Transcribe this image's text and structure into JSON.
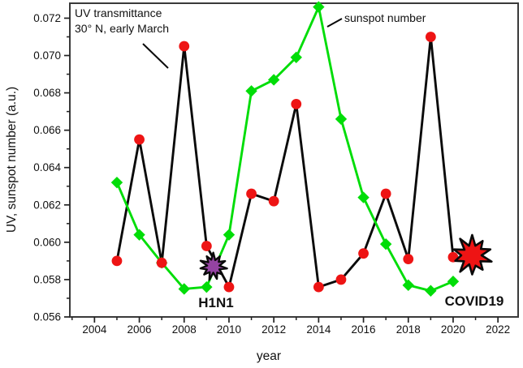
{
  "figure": {
    "background": "#ffffff",
    "frame_color": "#3a3a3a"
  },
  "chart_data": {
    "type": "line",
    "title": "",
    "xlabel": "year",
    "ylabel": "UV,  sunspot number  (a.u.)",
    "xlim": [
      2002.9,
      2022.9
    ],
    "ylim": [
      0.056,
      0.0728
    ],
    "grid": false,
    "legend": "inline-annotations",
    "x_major_ticks": [
      2004,
      2006,
      2008,
      2010,
      2012,
      2014,
      2016,
      2018,
      2020,
      2022
    ],
    "x_minor_ticks": [
      2003,
      2005,
      2007,
      2009,
      2011,
      2013,
      2015,
      2017,
      2019,
      2021
    ],
    "y_major_ticks": [
      0.056,
      0.058,
      0.06,
      0.062,
      0.064,
      0.066,
      0.068,
      0.07,
      0.072
    ],
    "y_minor_ticks": [
      0.057,
      0.059,
      0.061,
      0.063,
      0.065,
      0.067,
      0.069,
      0.071
    ],
    "x": [
      2005,
      2006,
      2007,
      2008,
      2009,
      2010,
      2011,
      2012,
      2013,
      2014,
      2015,
      2016,
      2017,
      2018,
      2019,
      2020
    ],
    "series": [
      {
        "name": "UV transmittance",
        "marker": "circle",
        "line_color": "#0a0a0a",
        "marker_color": "#ee1414",
        "values": [
          0.059,
          0.0655,
          0.0589,
          0.0705,
          0.0598,
          0.0576,
          0.0626,
          0.0622,
          0.0674,
          0.0576,
          0.058,
          0.0594,
          0.0626,
          0.0591,
          0.071,
          0.0592
        ]
      },
      {
        "name": "sunspot number",
        "marker": "diamond",
        "line_color": "#00dd08",
        "marker_color": "#00dd08",
        "values": [
          0.0632,
          0.0604,
          0.0589,
          0.0575,
          0.0576,
          0.0604,
          0.0681,
          0.0687,
          0.0699,
          0.0726,
          0.0666,
          0.0624,
          0.0599,
          0.0577,
          0.0574,
          0.0579
        ]
      }
    ]
  },
  "annotations": {
    "uv": {
      "line1": "UV transmittance",
      "line2": "30° N, early March",
      "points_to_year": 2008
    },
    "sunspot": {
      "label": "sunspot number",
      "points_to_year": 2014
    },
    "h1n1": {
      "label": "H1N1",
      "star_color": "#9443a2",
      "star_outline": "#0a0a0a",
      "year": 2009.3,
      "value": 0.0587
    },
    "covid": {
      "label": "COVID19",
      "star_color": "#ee1414",
      "star_outline": "#0a0a0a",
      "year": 2020.85,
      "value": 0.0593
    }
  }
}
